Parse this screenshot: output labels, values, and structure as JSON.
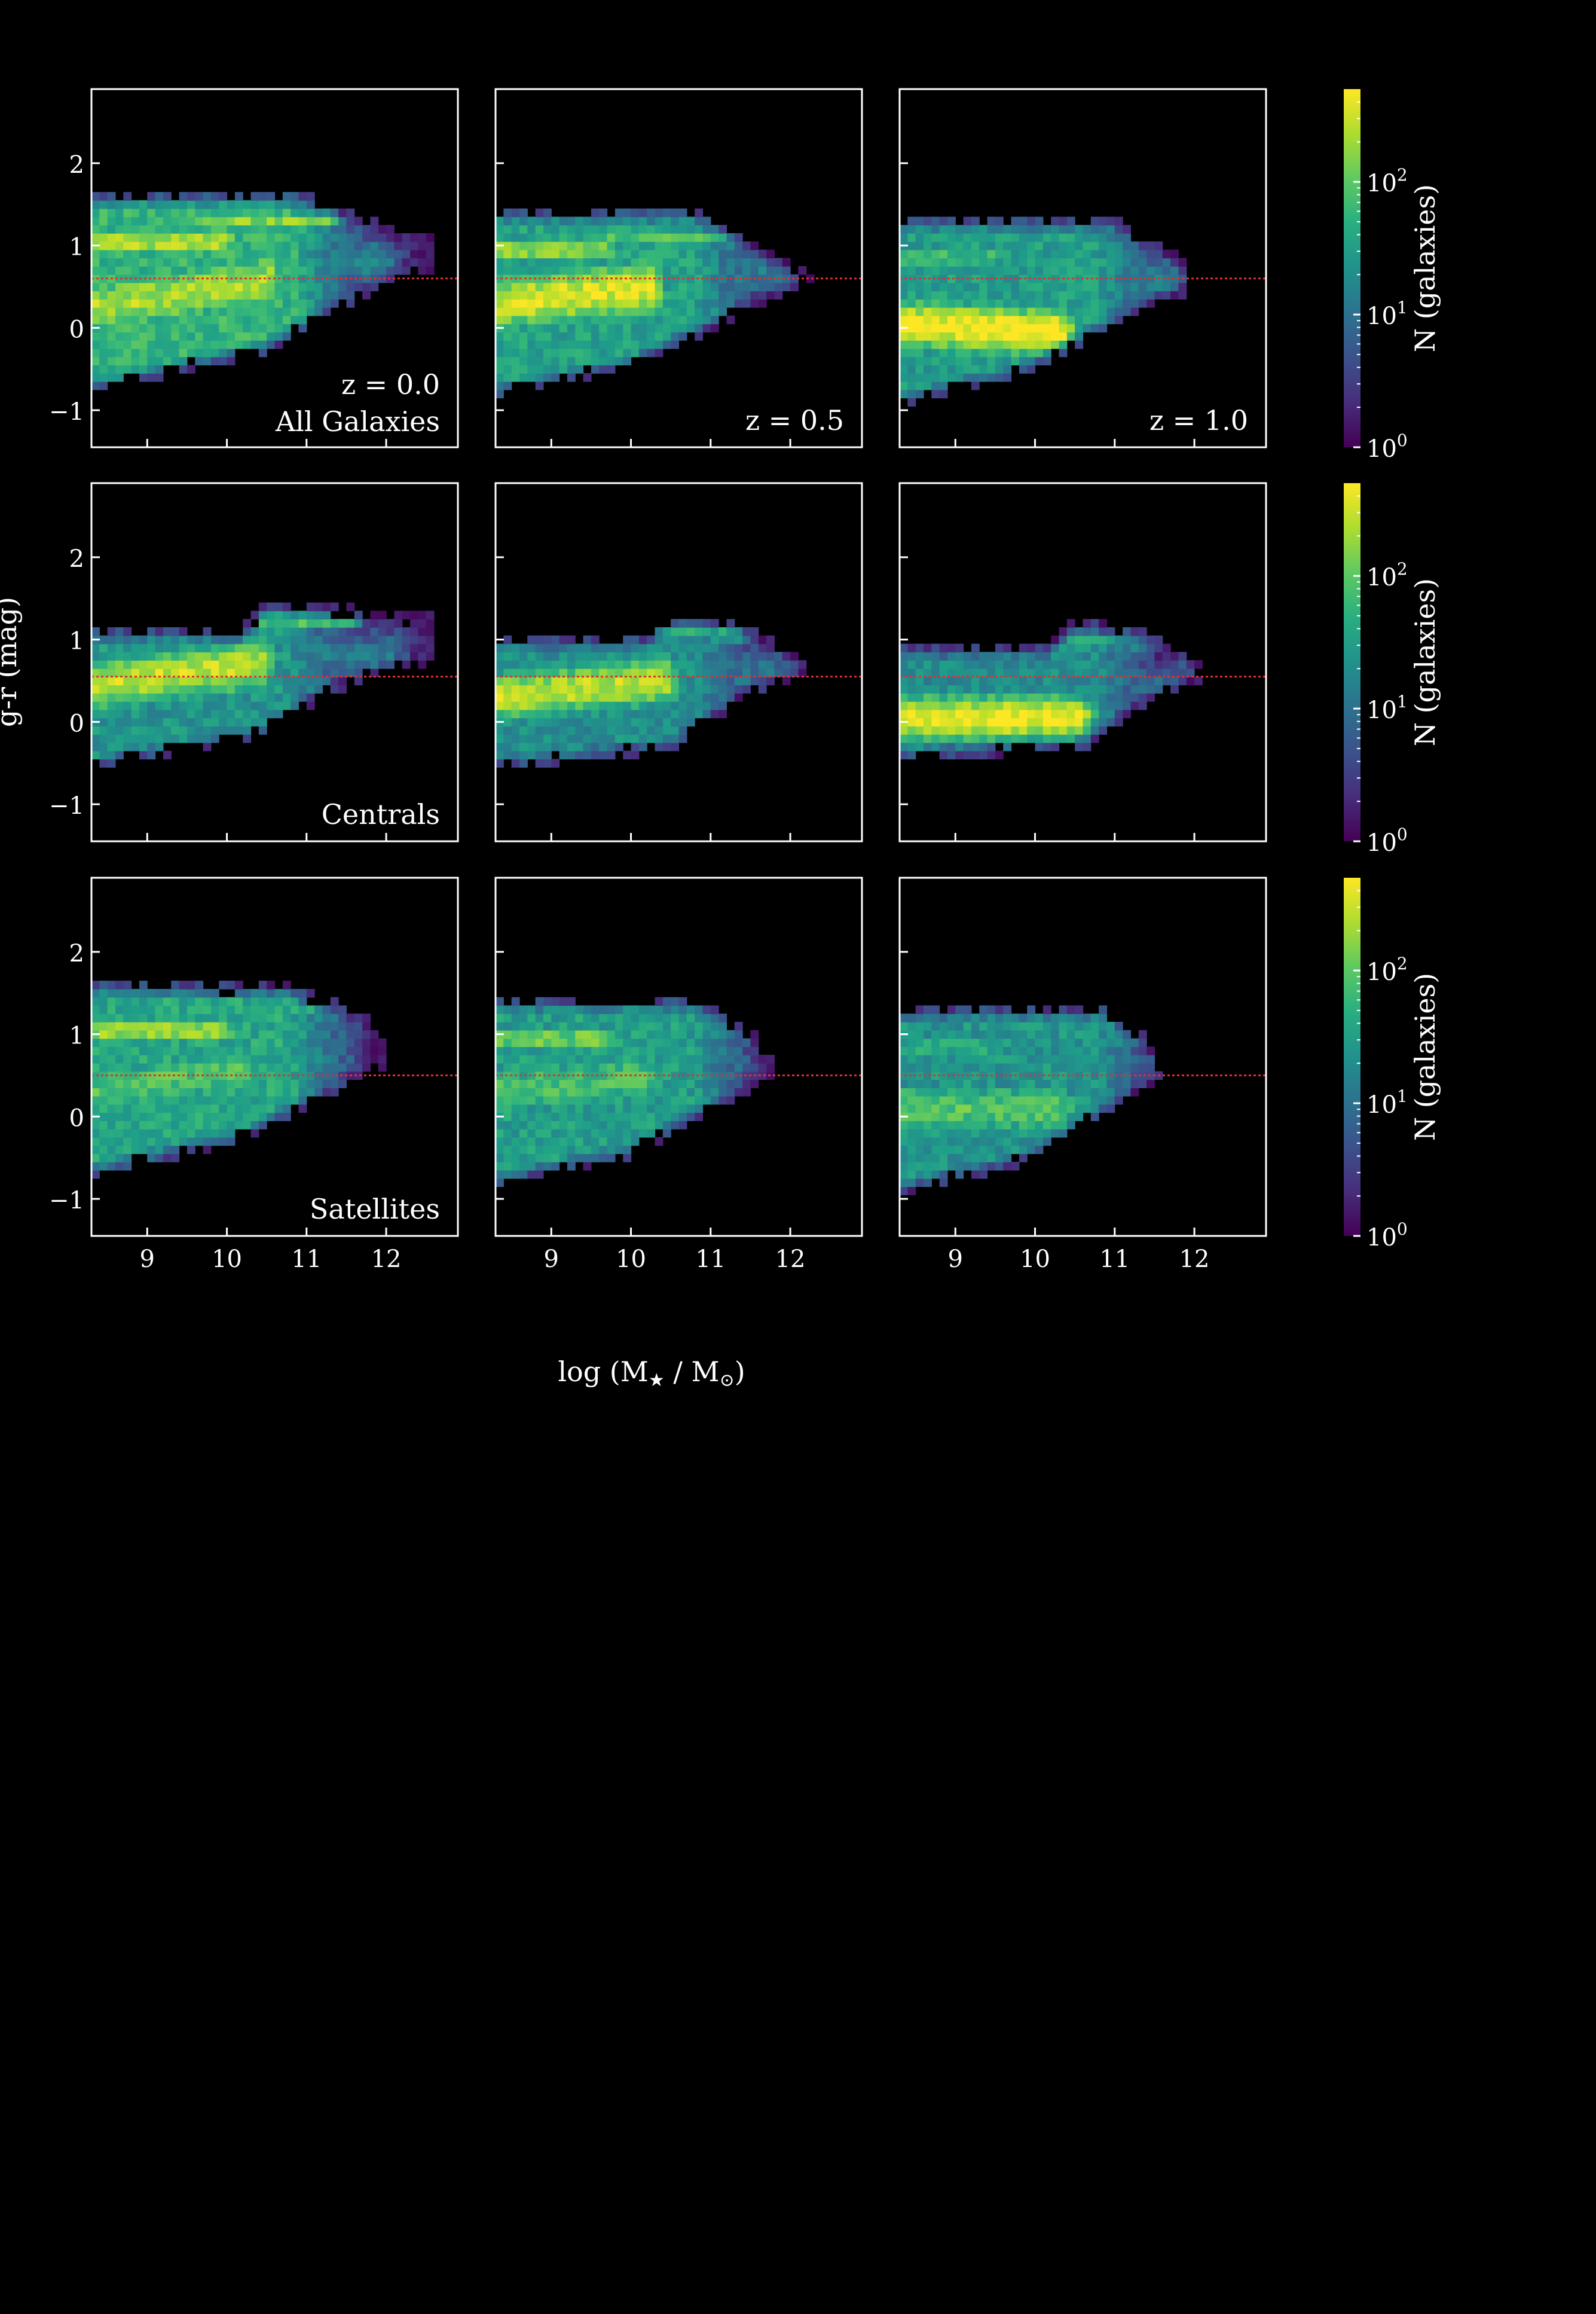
{
  "chart_data": {
    "type": "heatmap",
    "grid": "3x3 small multiples",
    "xlabel_main": "log (M",
    "xlabel_star": "★",
    "xlabel_mid": " / M",
    "xlabel_sun": "⊙",
    "xlabel_end": ")",
    "ylabel": "g-r (mag)",
    "xlim": [
      8.3,
      12.9
    ],
    "ylim": [
      -1.45,
      2.9
    ],
    "x_ticks": [
      9,
      10,
      11,
      12
    ],
    "x_tick_labels": [
      "9",
      "10",
      "11",
      "12"
    ],
    "y_ticks": [
      -1,
      0,
      1,
      2
    ],
    "y_tick_labels": [
      "−1",
      "0",
      "1",
      "2"
    ],
    "colorbar": {
      "label": "N (galaxies)",
      "scale": "log",
      "range": [
        1,
        500
      ],
      "tick_base": "10",
      "tick_exponents": [
        "0",
        "1",
        "2"
      ],
      "colormap": "viridis"
    },
    "reference_line_color": "#e03030",
    "panels": [
      {
        "row": 0,
        "col": 0,
        "labels": [
          "z = 0.0",
          "All Galaxies"
        ],
        "line_y": 0.6,
        "blobs": [
          {
            "x0": 8.3,
            "x1": 9.9,
            "y": 1.05,
            "sy": 0.09,
            "a": 2.7
          },
          {
            "x0": 9.8,
            "x1": 11.2,
            "y": 1.3,
            "sy": 0.1,
            "a": 2.2
          },
          {
            "x0": 8.3,
            "x1": 10.5,
            "y": 0.25,
            "sy": 0.35,
            "a": 2.35,
            "slope": 0.15
          },
          {
            "x0": 10.4,
            "x1": 11.9,
            "y": 0.8,
            "sy": 0.3,
            "a": 1.2
          }
        ],
        "envelope": {
          "top": [
            [
              8.3,
              1.65
            ],
            [
              11.0,
              1.65
            ],
            [
              12.2,
              1.2
            ],
            [
              12.6,
              1.2
            ]
          ],
          "bottom": [
            [
              8.3,
              -0.8
            ],
            [
              10.5,
              -0.3
            ],
            [
              12.0,
              0.5
            ],
            [
              12.6,
              0.7
            ]
          ],
          "bg": 1.75,
          "xmax": 12.6
        }
      },
      {
        "row": 0,
        "col": 1,
        "labels": [
          "z = 0.5"
        ],
        "line_y": 0.6,
        "blobs": [
          {
            "x0": 8.3,
            "x1": 9.6,
            "y": 0.95,
            "sy": 0.1,
            "a": 2.5
          },
          {
            "x0": 9.6,
            "x1": 11.2,
            "y": 1.1,
            "sy": 0.12,
            "a": 1.9
          },
          {
            "x0": 8.3,
            "x1": 10.2,
            "y": 0.3,
            "sy": 0.35,
            "a": 2.55,
            "slope": 0.1
          },
          {
            "x0": 10.3,
            "x1": 11.8,
            "y": 0.7,
            "sy": 0.3,
            "a": 1.1
          }
        ],
        "envelope": {
          "top": [
            [
              8.3,
              1.45
            ],
            [
              10.8,
              1.45
            ],
            [
              12.0,
              0.8
            ],
            [
              12.3,
              0.6
            ]
          ],
          "bottom": [
            [
              8.3,
              -0.85
            ],
            [
              10.0,
              -0.5
            ],
            [
              11.5,
              0.2
            ],
            [
              12.2,
              0.5
            ]
          ],
          "bg": 1.55,
          "xmax": 12.3
        }
      },
      {
        "row": 0,
        "col": 2,
        "labels": [
          "z = 1.0"
        ],
        "line_y": 0.6,
        "blobs": [
          {
            "x0": 8.3,
            "x1": 9.4,
            "y": 0.85,
            "sy": 0.1,
            "a": 2.0
          },
          {
            "x0": 8.3,
            "x1": 10.3,
            "y": 0.05,
            "sy": 0.3,
            "a": 2.7,
            "slope": -0.05
          },
          {
            "x0": 9.3,
            "x1": 11.0,
            "y": 1.0,
            "sy": 0.15,
            "a": 1.4
          },
          {
            "x0": 10.3,
            "x1": 11.6,
            "y": 0.6,
            "sy": 0.3,
            "a": 1.1
          }
        ],
        "envelope": {
          "top": [
            [
              8.3,
              1.35
            ],
            [
              11.0,
              1.35
            ],
            [
              11.8,
              0.9
            ],
            [
              12.0,
              0.6
            ]
          ],
          "bottom": [
            [
              8.3,
              -0.95
            ],
            [
              9.8,
              -0.6
            ],
            [
              11.2,
              0.1
            ],
            [
              12.0,
              0.45
            ]
          ],
          "bg": 1.5,
          "xmax": 12.0
        }
      },
      {
        "row": 1,
        "col": 0,
        "labels": [
          "Centrals"
        ],
        "line_y": 0.55,
        "blobs": [
          {
            "x0": 8.3,
            "x1": 10.4,
            "y": 0.45,
            "sy": 0.32,
            "a": 2.45,
            "slope": 0.12
          },
          {
            "x0": 8.3,
            "x1": 9.8,
            "y": 0.95,
            "sy": 0.12,
            "a": 1.6
          },
          {
            "x0": 10.3,
            "x1": 11.4,
            "y": 1.25,
            "sy": 0.1,
            "a": 2.1
          },
          {
            "x0": 10.8,
            "x1": 12.0,
            "y": 0.8,
            "sy": 0.28,
            "a": 1.1
          }
        ],
        "envelope": {
          "top": [
            [
              8.3,
              1.15
            ],
            [
              10.2,
              1.15
            ],
            [
              10.5,
              1.45
            ],
            [
              11.6,
              1.4
            ],
            [
              12.3,
              1.3
            ]
          ],
          "bottom": [
            [
              8.3,
              -0.6
            ],
            [
              10.4,
              -0.2
            ],
            [
              11.3,
              0.35
            ],
            [
              12.3,
              0.65
            ]
          ],
          "bg": 1.4,
          "xmax": 12.6
        }
      },
      {
        "row": 1,
        "col": 1,
        "labels": [],
        "line_y": 0.55,
        "blobs": [
          {
            "x0": 8.3,
            "x1": 10.4,
            "y": 0.3,
            "sy": 0.3,
            "a": 2.45,
            "slope": 0.1
          },
          {
            "x0": 8.3,
            "x1": 9.8,
            "y": 0.85,
            "sy": 0.14,
            "a": 1.3
          },
          {
            "x0": 10.4,
            "x1": 11.3,
            "y": 1.1,
            "sy": 0.12,
            "a": 1.8
          },
          {
            "x0": 10.7,
            "x1": 11.8,
            "y": 0.6,
            "sy": 0.3,
            "a": 1.0
          }
        ],
        "envelope": {
          "top": [
            [
              8.3,
              1.05
            ],
            [
              10.2,
              1.05
            ],
            [
              10.5,
              1.3
            ],
            [
              11.3,
              1.25
            ],
            [
              12.0,
              0.9
            ]
          ],
          "bottom": [
            [
              8.3,
              -0.6
            ],
            [
              10.5,
              -0.35
            ],
            [
              11.4,
              0.25
            ],
            [
              12.0,
              0.5
            ]
          ],
          "bg": 1.35,
          "xmax": 12.2
        }
      },
      {
        "row": 1,
        "col": 2,
        "labels": [],
        "line_y": 0.55,
        "blobs": [
          {
            "x0": 8.3,
            "x1": 10.5,
            "y": 0.05,
            "sy": 0.27,
            "a": 2.7,
            "slope": 0.0
          },
          {
            "x0": 8.3,
            "x1": 9.5,
            "y": 0.7,
            "sy": 0.12,
            "a": 1.2
          },
          {
            "x0": 10.4,
            "x1": 11.2,
            "y": 1.0,
            "sy": 0.13,
            "a": 1.6
          },
          {
            "x0": 10.7,
            "x1": 11.8,
            "y": 0.45,
            "sy": 0.28,
            "a": 0.9
          }
        ],
        "envelope": {
          "top": [
            [
              8.3,
              0.95
            ],
            [
              10.2,
              0.95
            ],
            [
              10.5,
              1.25
            ],
            [
              11.3,
              1.15
            ],
            [
              12.0,
              0.9
            ]
          ],
          "bottom": [
            [
              8.3,
              -0.5
            ],
            [
              10.6,
              -0.35
            ],
            [
              11.4,
              0.2
            ],
            [
              12.0,
              0.5
            ]
          ],
          "bg": 1.3,
          "xmax": 12.1
        }
      },
      {
        "row": 2,
        "col": 0,
        "labels": [
          "Satellites"
        ],
        "line_y": 0.5,
        "blobs": [
          {
            "x0": 8.3,
            "x1": 9.9,
            "y": 1.05,
            "sy": 0.09,
            "a": 2.6
          },
          {
            "x0": 9.8,
            "x1": 11.0,
            "y": 1.3,
            "sy": 0.1,
            "a": 1.6
          },
          {
            "x0": 8.3,
            "x1": 10.2,
            "y": 0.3,
            "sy": 0.35,
            "a": 1.95,
            "slope": 0.15
          },
          {
            "x0": 10.2,
            "x1": 11.4,
            "y": 0.7,
            "sy": 0.3,
            "a": 0.9
          }
        ],
        "envelope": {
          "top": [
            [
              8.3,
              1.65
            ],
            [
              10.8,
              1.6
            ],
            [
              11.7,
              1.3
            ],
            [
              12.0,
              1.0
            ]
          ],
          "bottom": [
            [
              8.3,
              -0.75
            ],
            [
              10.2,
              -0.3
            ],
            [
              11.3,
              0.25
            ],
            [
              12.0,
              0.6
            ]
          ],
          "bg": 1.6,
          "xmax": 12.0
        }
      },
      {
        "row": 2,
        "col": 1,
        "labels": [],
        "line_y": 0.5,
        "blobs": [
          {
            "x0": 8.3,
            "x1": 9.6,
            "y": 0.95,
            "sy": 0.1,
            "a": 2.3
          },
          {
            "x0": 9.6,
            "x1": 11.0,
            "y": 1.1,
            "sy": 0.12,
            "a": 1.4
          },
          {
            "x0": 8.3,
            "x1": 10.2,
            "y": 0.3,
            "sy": 0.35,
            "a": 1.9,
            "slope": 0.1
          },
          {
            "x0": 10.2,
            "x1": 11.3,
            "y": 0.6,
            "sy": 0.3,
            "a": 0.9
          }
        ],
        "envelope": {
          "top": [
            [
              8.3,
              1.45
            ],
            [
              10.8,
              1.45
            ],
            [
              11.6,
              1.0
            ],
            [
              11.8,
              0.6
            ]
          ],
          "bottom": [
            [
              8.3,
              -0.85
            ],
            [
              10.0,
              -0.5
            ],
            [
              11.3,
              0.2
            ],
            [
              11.8,
              0.5
            ]
          ],
          "bg": 1.5,
          "xmax": 11.8
        }
      },
      {
        "row": 2,
        "col": 2,
        "labels": [],
        "line_y": 0.5,
        "blobs": [
          {
            "x0": 8.3,
            "x1": 9.4,
            "y": 0.85,
            "sy": 0.1,
            "a": 1.8
          },
          {
            "x0": 8.3,
            "x1": 10.3,
            "y": 0.1,
            "sy": 0.35,
            "a": 1.95,
            "slope": 0.0
          },
          {
            "x0": 9.3,
            "x1": 11.0,
            "y": 0.9,
            "sy": 0.15,
            "a": 1.2
          },
          {
            "x0": 10.3,
            "x1": 11.3,
            "y": 0.55,
            "sy": 0.3,
            "a": 0.8
          }
        ],
        "envelope": {
          "top": [
            [
              8.3,
              1.35
            ],
            [
              10.9,
              1.35
            ],
            [
              11.4,
              1.0
            ],
            [
              11.6,
              0.6
            ]
          ],
          "bottom": [
            [
              8.3,
              -0.95
            ],
            [
              9.8,
              -0.6
            ],
            [
              11.0,
              0.1
            ],
            [
              11.6,
              0.45
            ]
          ],
          "bg": 1.4,
          "xmax": 11.6
        }
      }
    ]
  }
}
